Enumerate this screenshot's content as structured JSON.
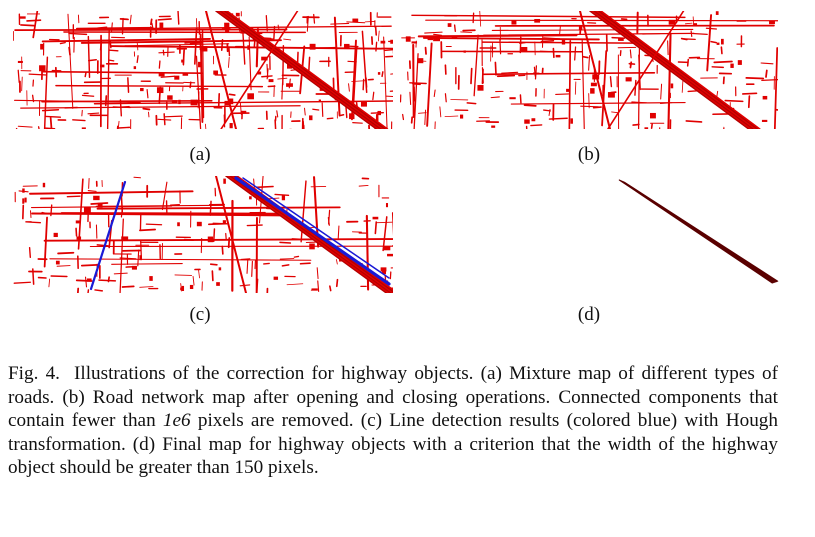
{
  "figure": {
    "panels": [
      {
        "label": "(a)",
        "content": "Mixture map of different types of roads"
      },
      {
        "label": "(b)",
        "content": "Road network map after opening and closing operations"
      },
      {
        "label": "(c)",
        "content": "Line detection results with Hough transformation"
      },
      {
        "label": "(d)",
        "content": "Final map for highway objects"
      }
    ],
    "colors": {
      "road": "#e00000",
      "road_dark": "#b40000",
      "hough_line": "#1a1ad6",
      "highway": "#5a0000"
    }
  },
  "caption": {
    "fig_number": "Fig. 4.",
    "part1": "Illustrations of the correction for highway objects. (a) Mixture map of different types of roads. (b) Road network map after opening and closing operations. Connected components that contain fewer than ",
    "math": "1e6",
    "part2": " pixels are removed. (c) Line detection results (colored blue) with Hough transformation. (d) Final map for highway objects with a criterion that the width of the highway object should be greater than 150 pixels."
  }
}
